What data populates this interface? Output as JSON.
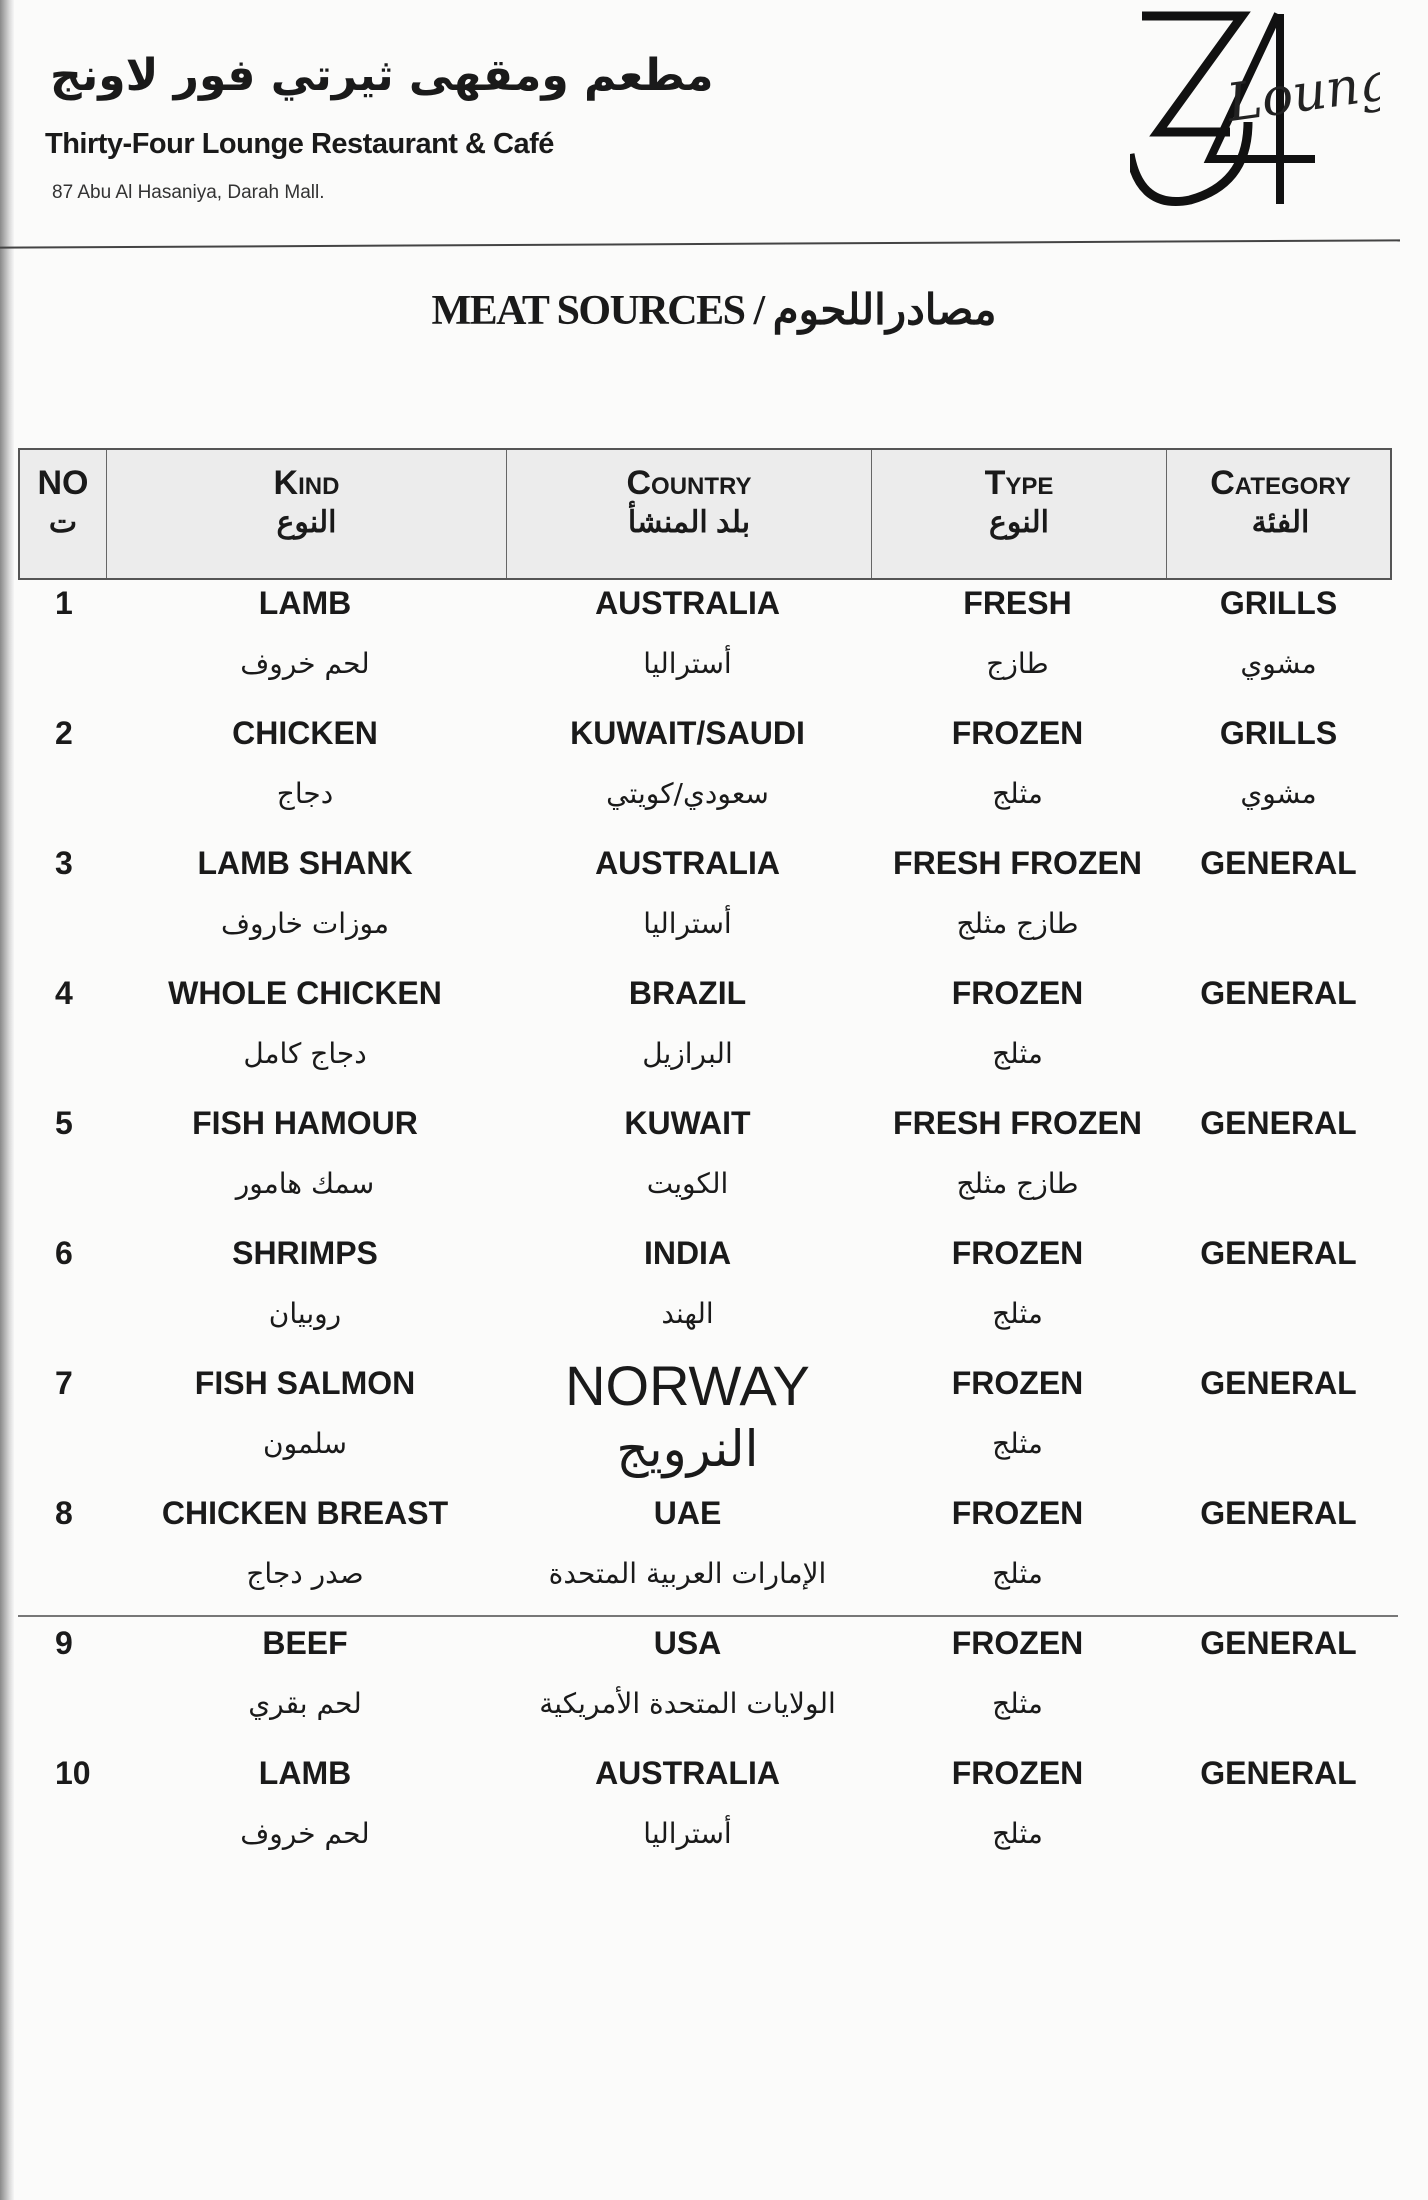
{
  "header": {
    "arabic_name": "مطعم ومقهى ثيرتي فور لاونج",
    "english_name": "Thirty-Four Lounge Restaurant & Café",
    "address": "87 Abu Al Hasaniya, Darah Mall.",
    "logo_text": "34 Lounge"
  },
  "title": "MEAT SOURCES / مصادراللحوم",
  "columns": [
    {
      "en": "NO",
      "ar": "ت"
    },
    {
      "en": "Kind",
      "ar": "النوع"
    },
    {
      "en": "Country",
      "ar": "بلد المنشأ"
    },
    {
      "en": "Type",
      "ar": "النوع"
    },
    {
      "en": "Category",
      "ar": "الفئة"
    }
  ],
  "rows": [
    {
      "no": "1",
      "kind": "LAMB",
      "kind_ar": "لحم خروف",
      "country": "AUSTRALIA",
      "country_ar": "أستراليا",
      "type": "FRESH",
      "type_ar": "طازج",
      "category": "GRILLS",
      "category_ar": "مشوي"
    },
    {
      "no": "2",
      "kind": "CHICKEN",
      "kind_ar": "دجاج",
      "country": "KUWAIT/SAUDI",
      "country_ar": "سعودي/كويتي",
      "type": "FROZEN",
      "type_ar": "مثلج",
      "category": "GRILLS",
      "category_ar": "مشوي"
    },
    {
      "no": "3",
      "kind": "LAMB SHANK",
      "kind_ar": "موزات خاروف",
      "country": "AUSTRALIA",
      "country_ar": "أستراليا",
      "type": "FRESH FROZEN",
      "type_ar": "طازج مثلج",
      "category": "GENERAL",
      "category_ar": ""
    },
    {
      "no": "4",
      "kind": "WHOLE CHICKEN",
      "kind_ar": "دجاج كامل",
      "country": "BRAZIL",
      "country_ar": "البرازيل",
      "type": "FROZEN",
      "type_ar": "مثلج",
      "category": "GENERAL",
      "category_ar": ""
    },
    {
      "no": "5",
      "kind": "FISH HAMOUR",
      "kind_ar": "سمك هامور",
      "country": "KUWAIT",
      "country_ar": "الكويت",
      "type": "FRESH FROZEN",
      "type_ar": "طازج مثلج",
      "category": "GENERAL",
      "category_ar": ""
    },
    {
      "no": "6",
      "kind": "SHRIMPS",
      "kind_ar": "روبيان",
      "country": "INDIA",
      "country_ar": "الهند",
      "type": "FROZEN",
      "type_ar": "مثلج",
      "category": "GENERAL",
      "category_ar": ""
    },
    {
      "no": "7",
      "kind": "FISH SALMON",
      "kind_ar": "سلمون",
      "country": "NORWAY",
      "country_ar": "النرويج",
      "type": "FROZEN",
      "type_ar": "مثلج",
      "category": "GENERAL",
      "category_ar": ""
    },
    {
      "no": "8",
      "kind": "CHICKEN BREAST",
      "kind_ar": "صدر دجاج",
      "country": "UAE",
      "country_ar": "الإمارات العربية المتحدة",
      "type": "FROZEN",
      "type_ar": "مثلج",
      "category": "GENERAL",
      "category_ar": ""
    },
    {
      "no": "9",
      "kind": "BEEF",
      "kind_ar": "لحم بقري",
      "country": "USA",
      "country_ar": "الولايات المتحدة الأمريكية",
      "type": "FROZEN",
      "type_ar": "مثلج",
      "category": "GENERAL",
      "category_ar": ""
    },
    {
      "no": "10",
      "kind": "LAMB",
      "kind_ar": "لحم خروف",
      "country": "AUSTRALIA",
      "country_ar": "أستراليا",
      "type": "FROZEN",
      "type_ar": "مثلج",
      "category": "GENERAL",
      "category_ar": ""
    }
  ]
}
